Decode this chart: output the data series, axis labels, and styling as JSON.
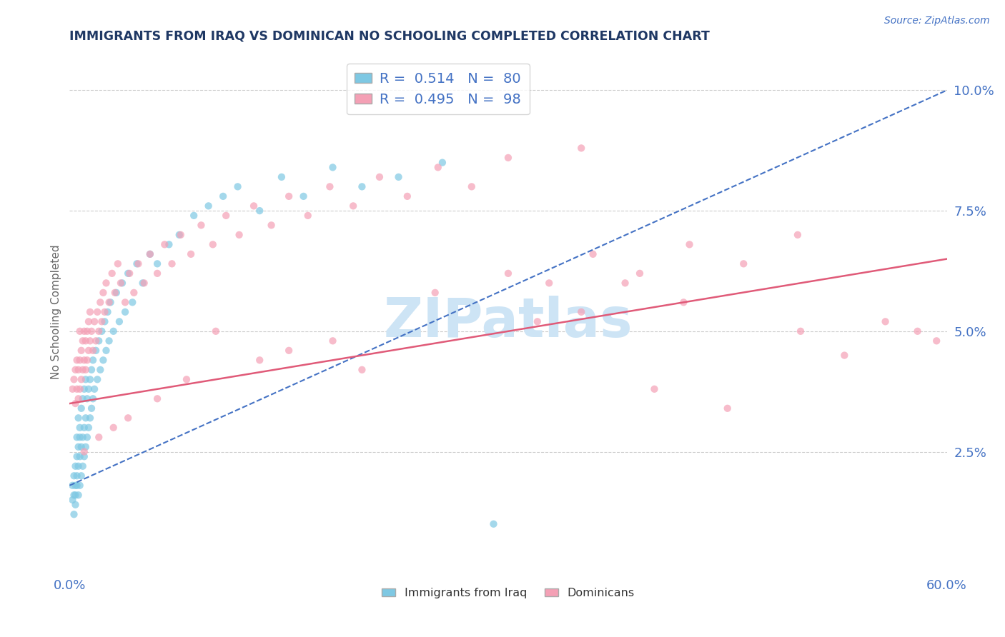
{
  "title": "IMMIGRANTS FROM IRAQ VS DOMINICAN NO SCHOOLING COMPLETED CORRELATION CHART",
  "source": "Source: ZipAtlas.com",
  "ylabel": "No Schooling Completed",
  "legend_entry1": "Immigrants from Iraq",
  "legend_entry2": "Dominicans",
  "R1": 0.514,
  "N1": 80,
  "R2": 0.495,
  "N2": 98,
  "xlim": [
    0.0,
    0.6
  ],
  "ylim": [
    0.0,
    0.108
  ],
  "yticks": [
    0.025,
    0.05,
    0.075,
    0.1
  ],
  "xticks": [
    0.0,
    0.1,
    0.2,
    0.3,
    0.4,
    0.5,
    0.6
  ],
  "blue_color": "#7ec8e3",
  "pink_color": "#f4a0b5",
  "blue_line_color": "#4472c4",
  "pink_line_color": "#e05a78",
  "title_color": "#1f3864",
  "axis_label_color": "#4472c4",
  "grid_color": "#cccccc",
  "background_color": "#ffffff",
  "watermark": "ZIPatlas",
  "watermark_color": "#cde4f5",
  "watermark_fontsize": 55,
  "iraq_x": [
    0.002,
    0.002,
    0.003,
    0.003,
    0.003,
    0.004,
    0.004,
    0.004,
    0.004,
    0.005,
    0.005,
    0.005,
    0.005,
    0.006,
    0.006,
    0.006,
    0.006,
    0.007,
    0.007,
    0.007,
    0.007,
    0.008,
    0.008,
    0.008,
    0.009,
    0.009,
    0.009,
    0.01,
    0.01,
    0.01,
    0.011,
    0.011,
    0.011,
    0.012,
    0.012,
    0.013,
    0.013,
    0.014,
    0.014,
    0.015,
    0.015,
    0.016,
    0.016,
    0.017,
    0.018,
    0.019,
    0.02,
    0.021,
    0.022,
    0.023,
    0.024,
    0.025,
    0.026,
    0.027,
    0.028,
    0.03,
    0.032,
    0.034,
    0.036,
    0.038,
    0.04,
    0.043,
    0.046,
    0.05,
    0.055,
    0.06,
    0.068,
    0.075,
    0.085,
    0.095,
    0.105,
    0.115,
    0.13,
    0.145,
    0.16,
    0.18,
    0.2,
    0.225,
    0.255,
    0.29
  ],
  "iraq_y": [
    0.015,
    0.018,
    0.012,
    0.02,
    0.016,
    0.014,
    0.018,
    0.022,
    0.016,
    0.02,
    0.024,
    0.018,
    0.028,
    0.016,
    0.022,
    0.026,
    0.032,
    0.018,
    0.024,
    0.03,
    0.028,
    0.02,
    0.026,
    0.034,
    0.022,
    0.028,
    0.036,
    0.024,
    0.03,
    0.038,
    0.026,
    0.032,
    0.04,
    0.028,
    0.036,
    0.03,
    0.038,
    0.032,
    0.04,
    0.034,
    0.042,
    0.036,
    0.044,
    0.038,
    0.046,
    0.04,
    0.048,
    0.042,
    0.05,
    0.044,
    0.052,
    0.046,
    0.054,
    0.048,
    0.056,
    0.05,
    0.058,
    0.052,
    0.06,
    0.054,
    0.062,
    0.056,
    0.064,
    0.06,
    0.066,
    0.064,
    0.068,
    0.07,
    0.074,
    0.076,
    0.078,
    0.08,
    0.075,
    0.082,
    0.078,
    0.084,
    0.08,
    0.082,
    0.085,
    0.01
  ],
  "dom_x": [
    0.002,
    0.003,
    0.004,
    0.004,
    0.005,
    0.005,
    0.006,
    0.006,
    0.007,
    0.007,
    0.007,
    0.008,
    0.008,
    0.009,
    0.009,
    0.01,
    0.01,
    0.011,
    0.011,
    0.012,
    0.012,
    0.013,
    0.013,
    0.014,
    0.014,
    0.015,
    0.016,
    0.017,
    0.018,
    0.019,
    0.02,
    0.021,
    0.022,
    0.023,
    0.024,
    0.025,
    0.027,
    0.029,
    0.031,
    0.033,
    0.035,
    0.038,
    0.041,
    0.044,
    0.047,
    0.051,
    0.055,
    0.06,
    0.065,
    0.07,
    0.076,
    0.083,
    0.09,
    0.098,
    0.107,
    0.116,
    0.126,
    0.138,
    0.15,
    0.163,
    0.178,
    0.194,
    0.212,
    0.231,
    0.252,
    0.275,
    0.3,
    0.328,
    0.358,
    0.39,
    0.424,
    0.461,
    0.498,
    0.53,
    0.558,
    0.58,
    0.593,
    0.3,
    0.25,
    0.35,
    0.1,
    0.15,
    0.2,
    0.4,
    0.45,
    0.35,
    0.5,
    0.42,
    0.38,
    0.32,
    0.18,
    0.13,
    0.08,
    0.06,
    0.04,
    0.03,
    0.02,
    0.01
  ],
  "dom_y": [
    0.038,
    0.04,
    0.035,
    0.042,
    0.038,
    0.044,
    0.036,
    0.042,
    0.038,
    0.044,
    0.05,
    0.04,
    0.046,
    0.042,
    0.048,
    0.044,
    0.05,
    0.042,
    0.048,
    0.044,
    0.05,
    0.046,
    0.052,
    0.048,
    0.054,
    0.05,
    0.046,
    0.052,
    0.048,
    0.054,
    0.05,
    0.056,
    0.052,
    0.058,
    0.054,
    0.06,
    0.056,
    0.062,
    0.058,
    0.064,
    0.06,
    0.056,
    0.062,
    0.058,
    0.064,
    0.06,
    0.066,
    0.062,
    0.068,
    0.064,
    0.07,
    0.066,
    0.072,
    0.068,
    0.074,
    0.07,
    0.076,
    0.072,
    0.078,
    0.074,
    0.08,
    0.076,
    0.082,
    0.078,
    0.084,
    0.08,
    0.086,
    0.06,
    0.066,
    0.062,
    0.068,
    0.064,
    0.07,
    0.045,
    0.052,
    0.05,
    0.048,
    0.062,
    0.058,
    0.054,
    0.05,
    0.046,
    0.042,
    0.038,
    0.034,
    0.088,
    0.05,
    0.056,
    0.06,
    0.052,
    0.048,
    0.044,
    0.04,
    0.036,
    0.032,
    0.03,
    0.028,
    0.025
  ],
  "iraq_line_x0": 0.0,
  "iraq_line_y0": 0.018,
  "iraq_line_x1": 0.6,
  "iraq_line_y1": 0.1,
  "dom_line_x0": 0.0,
  "dom_line_y0": 0.035,
  "dom_line_x1": 0.6,
  "dom_line_y1": 0.065
}
